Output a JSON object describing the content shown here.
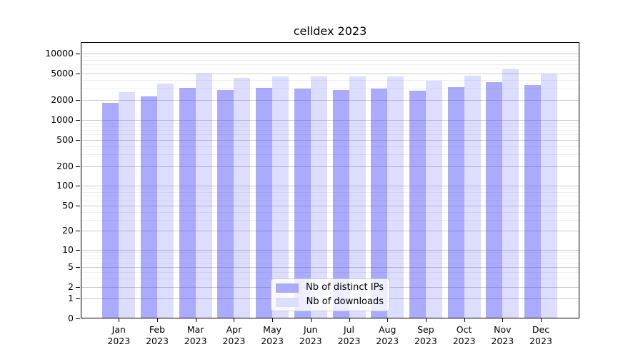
{
  "chart_data": {
    "type": "bar",
    "title": "celldex 2023",
    "year_label": "2023",
    "categories": [
      "Jan",
      "Feb",
      "Mar",
      "Apr",
      "May",
      "Jun",
      "Jul",
      "Aug",
      "Sep",
      "Oct",
      "Nov",
      "Dec"
    ],
    "series": [
      {
        "name": "Nb of distinct IPs",
        "color": "#aaaaff",
        "values": [
          1810,
          2260,
          3080,
          2800,
          3020,
          3000,
          2850,
          2950,
          2780,
          3160,
          3720,
          3340
        ]
      },
      {
        "name": "Nb of downloads",
        "color": "#ddddff",
        "values": [
          2630,
          3540,
          5080,
          4300,
          4510,
          4550,
          4600,
          4550,
          3940,
          4650,
          5860,
          4930
        ]
      }
    ],
    "y_axis": {
      "scale": "log1p",
      "ylim": [
        0,
        15000
      ],
      "major_ticks": [
        0,
        1,
        2,
        5,
        10,
        20,
        50,
        100,
        200,
        500,
        1000,
        2000,
        5000,
        10000
      ],
      "minor_ticks": [
        3,
        4,
        6,
        7,
        8,
        9,
        30,
        40,
        60,
        70,
        80,
        90,
        300,
        400,
        600,
        700,
        800,
        900,
        3000,
        4000,
        6000,
        7000,
        8000,
        9000
      ]
    },
    "grid": true,
    "legend_position": "lower center"
  }
}
